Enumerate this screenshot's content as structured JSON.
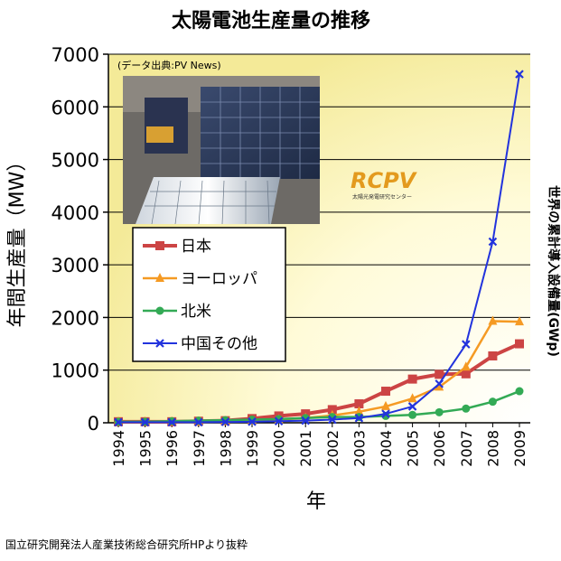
{
  "chart_data": {
    "type": "line",
    "title": "太陽電池生産量の推移",
    "source_note": "(データ出典:PV News)",
    "ylabel": "年間生産量（MW）",
    "xlabel": "年",
    "right_label": "世界の累計導入設備量(GWp)",
    "logo_text": "RCPV",
    "logo_sub": "太陽光発電研究センター",
    "ylim": [
      0,
      7000
    ],
    "yticks": [
      0,
      1000,
      2000,
      3000,
      4000,
      5000,
      6000,
      7000
    ],
    "x": [
      "1994",
      "1995",
      "1996",
      "1997",
      "1998",
      "1999",
      "2000",
      "2001",
      "2002",
      "2003",
      "2004",
      "2005",
      "2006",
      "2007",
      "2008",
      "2009"
    ],
    "series": [
      {
        "name": "日本",
        "color": "#cc4444",
        "marker": "square",
        "values": [
          20,
          20,
          20,
          30,
          40,
          80,
          130,
          170,
          250,
          360,
          600,
          830,
          920,
          930,
          1270,
          1500
        ]
      },
      {
        "name": "ヨーロッパ",
        "color": "#f59a23",
        "marker": "triangle",
        "values": [
          20,
          20,
          20,
          20,
          30,
          40,
          60,
          90,
          140,
          210,
          310,
          460,
          680,
          1060,
          1930,
          1920
        ]
      },
      {
        "name": "北米",
        "color": "#33aa55",
        "marker": "circle",
        "values": [
          20,
          20,
          30,
          40,
          50,
          60,
          70,
          90,
          110,
          110,
          130,
          150,
          200,
          270,
          400,
          600
        ]
      },
      {
        "name": "中国その他",
        "color": "#2233dd",
        "marker": "x",
        "values": [
          10,
          10,
          10,
          10,
          15,
          20,
          30,
          40,
          60,
          90,
          170,
          310,
          740,
          1490,
          3440,
          6620
        ]
      }
    ],
    "legend_position": "middle-left",
    "grid": "horizontal"
  },
  "footer": "国立研究開発法人産業技術総合研究所HPより抜粋"
}
